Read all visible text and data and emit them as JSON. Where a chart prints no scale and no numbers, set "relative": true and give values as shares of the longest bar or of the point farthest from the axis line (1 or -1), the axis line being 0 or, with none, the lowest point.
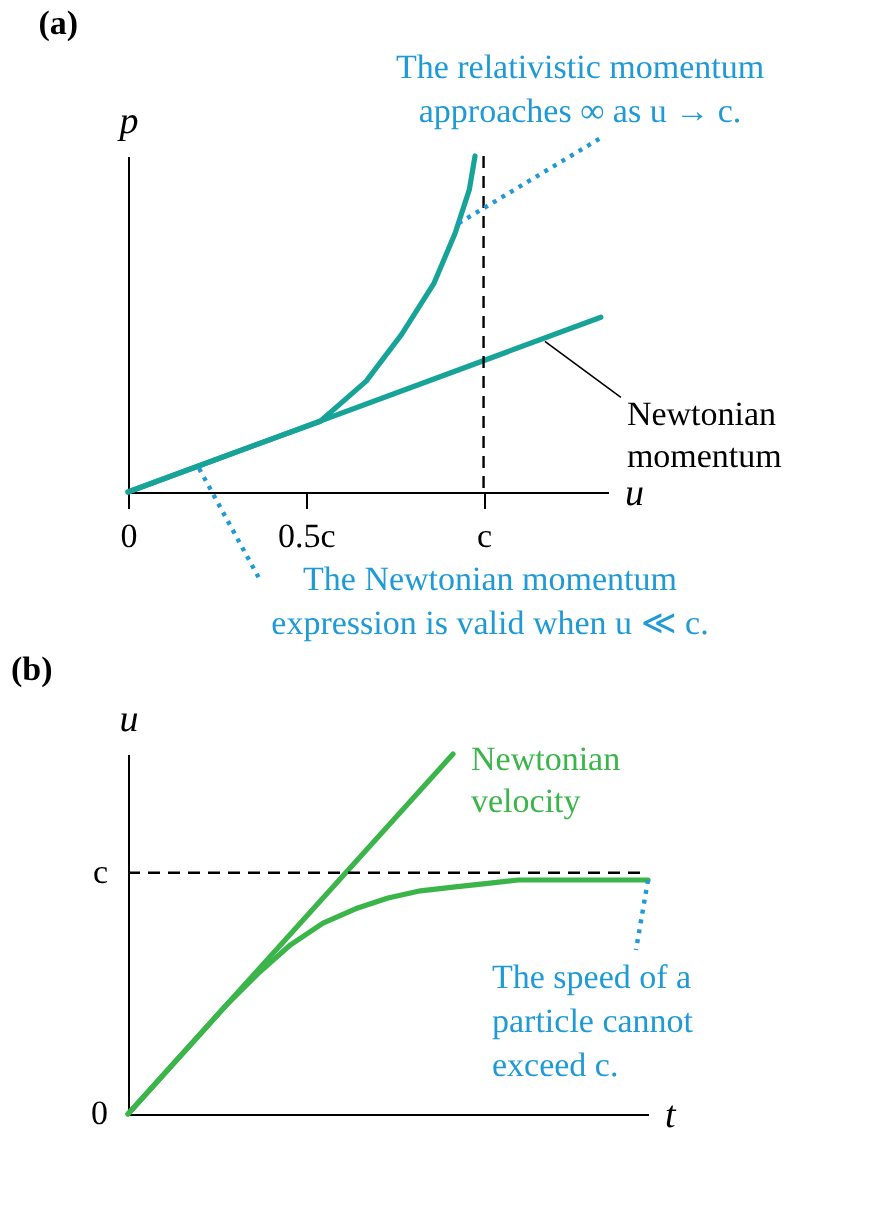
{
  "chart_data": [
    {
      "type": "line",
      "title": "(a)",
      "xlabel": "u",
      "ylabel": "p",
      "relative": true,
      "xlim": [
        0,
        1.35
      ],
      "xticks": [
        {
          "value": 0,
          "label": "0"
        },
        {
          "value": 0.5,
          "label": "0.5c"
        },
        {
          "value": 1,
          "label": "c"
        }
      ],
      "series": [
        {
          "color": "#17a398",
          "x": [
            0,
            0.2,
            0.4,
            0.54,
            0.67,
            0.77,
            0.86,
            0.92,
            0.96,
            0.976
          ],
          "values": [
            0,
            0.078,
            0.156,
            0.21,
            0.33,
            0.47,
            0.62,
            0.77,
            0.9,
            1.0
          ]
        },
        {
          "name": "Newtonian momentum",
          "color": "#17a398",
          "x": [
            0,
            1.33
          ],
          "values": [
            0,
            0.52
          ]
        }
      ],
      "ref_lines": [
        {
          "axis": "x",
          "value": 1,
          "line_style": "dashed",
          "color": "#000000"
        }
      ],
      "annotations": [
        {
          "text": "The relativistic momentum\napproaches ∞ as u → c.",
          "x": 0.93,
          "y": 0.8
        },
        {
          "text": "The Newtonian momentum\nexpression is valid when u ≪ c.",
          "x": 0.2,
          "y": 0.07
        }
      ],
      "grid": false,
      "legend": false
    },
    {
      "type": "line",
      "title": "(b)",
      "xlabel": "t",
      "ylabel": "u",
      "categories": [
        null,
        null,
        null,
        null,
        null,
        null,
        null,
        null,
        null,
        null,
        null,
        null,
        null,
        null,
        null,
        null,
        null
      ],
      "relative": true,
      "series": [
        {
          "name": "Newtonian velocity",
          "color": "#3bb54a",
          "values": [
            0,
            0.1,
            0.2,
            0.3,
            0.4,
            0.5,
            0.6,
            0.7,
            0.8,
            0.9,
            1.0,
            null,
            null,
            null,
            null,
            null,
            null
          ]
        },
        {
          "color": "#3bb54a",
          "values": [
            0,
            0.1,
            0.2,
            0.3,
            0.39,
            0.47,
            0.53,
            0.57,
            0.6,
            0.62,
            0.63,
            0.64,
            0.65,
            0.65,
            0.65,
            0.65,
            0.65
          ]
        }
      ],
      "ref_lines": [
        {
          "axis": "y",
          "value": 0.67,
          "label": "c",
          "line_style": "dashed",
          "color": "#000000"
        }
      ],
      "annotations": [
        "The speed of a\nparticle cannot\nexceed c.",
        "0"
      ],
      "grid": false,
      "legend": false
    }
  ]
}
